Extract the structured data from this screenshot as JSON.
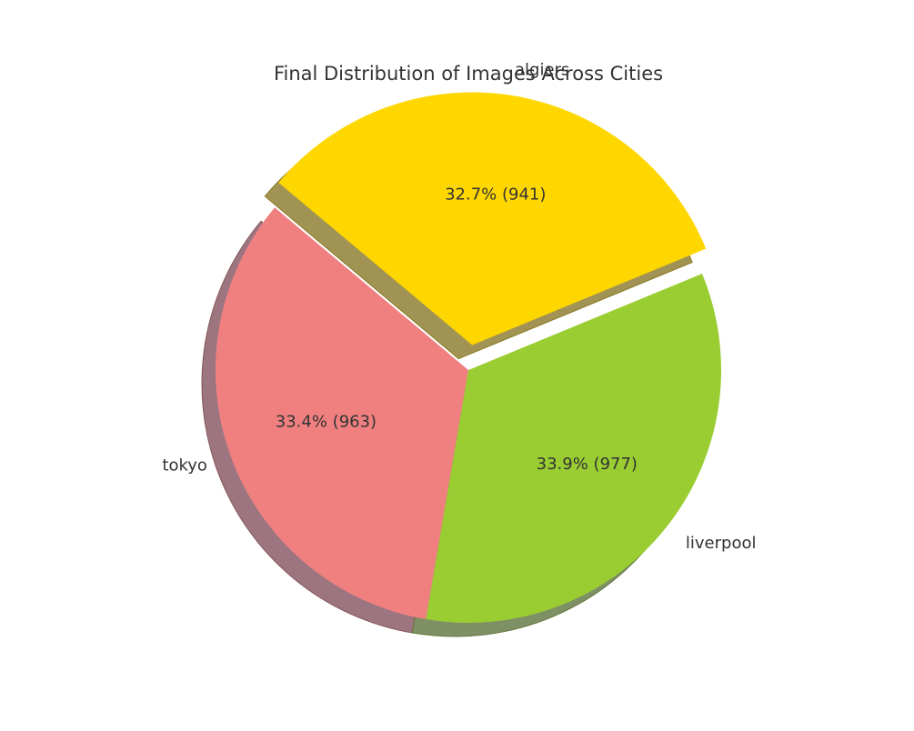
{
  "chart_data": {
    "type": "pie",
    "title": "Final Distribution of Images Across Cities",
    "slices": [
      {
        "label": "tokyo",
        "value": 963,
        "percent_label": "33.4% (963)",
        "color": "#F08080",
        "exploded": false
      },
      {
        "label": "liverpool",
        "value": 977,
        "percent_label": "33.9% (977)",
        "color": "#9ACD32",
        "exploded": false
      },
      {
        "label": "algiers",
        "value": 941,
        "percent_label": "32.7% (941)",
        "color": "#FFD700",
        "exploded": true
      }
    ],
    "shadow": true,
    "legend": "none"
  }
}
